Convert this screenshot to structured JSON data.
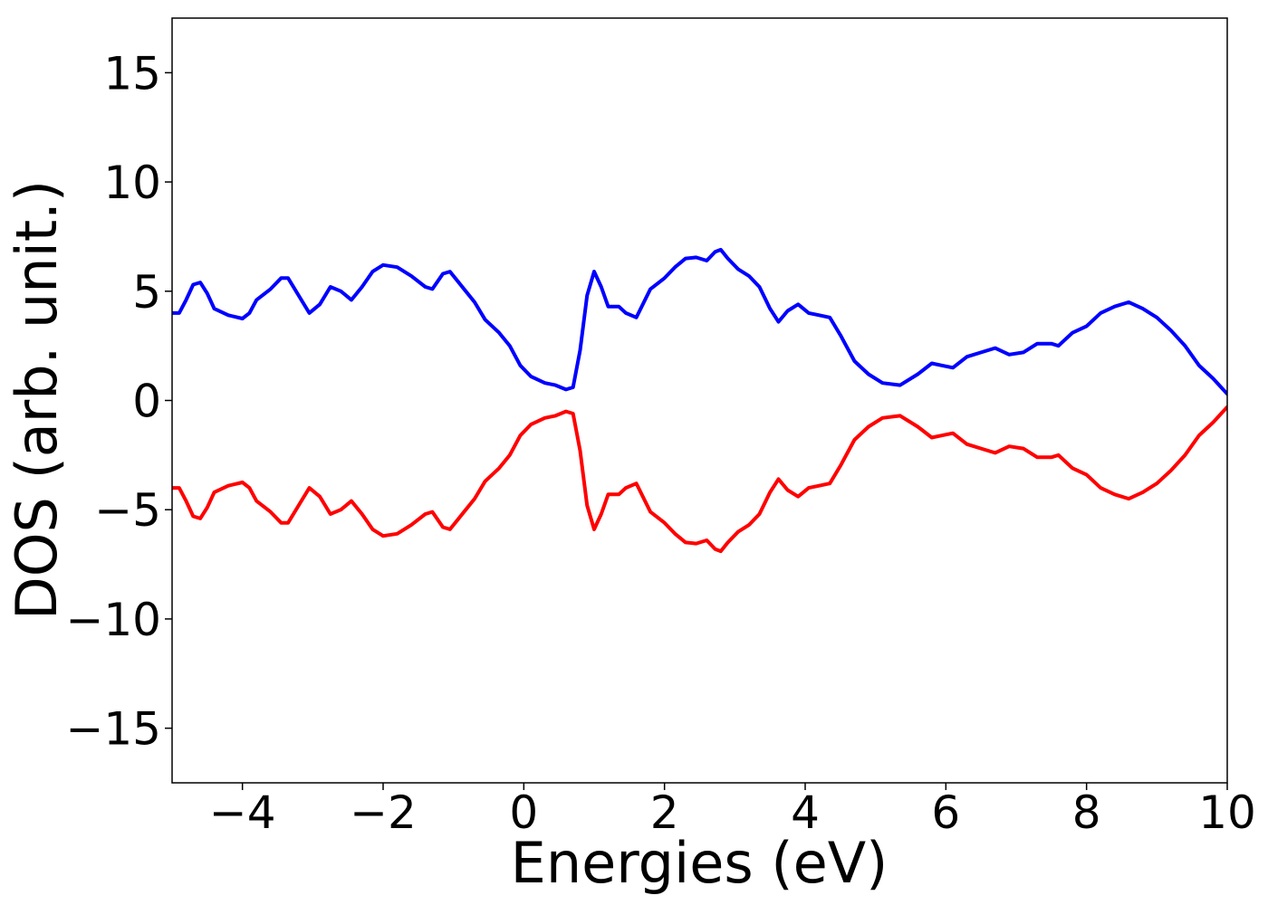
{
  "chart_data": {
    "type": "line",
    "title": "",
    "xlabel": "Energies (eV)",
    "ylabel": "DOS (arb. unit.)",
    "xlim": [
      -5,
      10
    ],
    "ylim": [
      -17.5,
      17.5
    ],
    "xticks": [
      -4,
      -2,
      0,
      2,
      4,
      6,
      8,
      10
    ],
    "xtick_labels": [
      "−4",
      "−2",
      "0",
      "2",
      "4",
      "6",
      "8",
      "10"
    ],
    "yticks": [
      -15,
      -10,
      -5,
      0,
      5,
      10,
      15
    ],
    "ytick_labels": [
      "−15",
      "−10",
      "−5",
      "0",
      "5",
      "10",
      "15"
    ],
    "grid": false,
    "legend": "none",
    "series": [
      {
        "color": "#0000ff",
        "points": [
          [
            -5.0,
            4.0
          ],
          [
            -4.9,
            4.0
          ],
          [
            -4.8,
            4.6
          ],
          [
            -4.7,
            5.3
          ],
          [
            -4.6,
            5.4
          ],
          [
            -4.5,
            4.9
          ],
          [
            -4.4,
            4.2
          ],
          [
            -4.2,
            3.9
          ],
          [
            -4.0,
            3.75
          ],
          [
            -3.9,
            4.0
          ],
          [
            -3.8,
            4.6
          ],
          [
            -3.6,
            5.1
          ],
          [
            -3.45,
            5.6
          ],
          [
            -3.35,
            5.6
          ],
          [
            -3.2,
            4.8
          ],
          [
            -3.05,
            4.0
          ],
          [
            -2.9,
            4.4
          ],
          [
            -2.75,
            5.2
          ],
          [
            -2.6,
            5.0
          ],
          [
            -2.45,
            4.6
          ],
          [
            -2.3,
            5.2
          ],
          [
            -2.15,
            5.9
          ],
          [
            -2.0,
            6.2
          ],
          [
            -1.8,
            6.1
          ],
          [
            -1.6,
            5.7
          ],
          [
            -1.4,
            5.2
          ],
          [
            -1.3,
            5.1
          ],
          [
            -1.15,
            5.8
          ],
          [
            -1.05,
            5.9
          ],
          [
            -0.9,
            5.3
          ],
          [
            -0.7,
            4.5
          ],
          [
            -0.55,
            3.7
          ],
          [
            -0.35,
            3.1
          ],
          [
            -0.2,
            2.5
          ],
          [
            -0.05,
            1.6
          ],
          [
            0.1,
            1.1
          ],
          [
            0.3,
            0.8
          ],
          [
            0.45,
            0.7
          ],
          [
            0.6,
            0.5
          ],
          [
            0.7,
            0.6
          ],
          [
            0.8,
            2.3
          ],
          [
            0.9,
            4.8
          ],
          [
            1.0,
            5.9
          ],
          [
            1.1,
            5.2
          ],
          [
            1.2,
            4.3
          ],
          [
            1.35,
            4.3
          ],
          [
            1.45,
            4.0
          ],
          [
            1.6,
            3.8
          ],
          [
            1.8,
            5.1
          ],
          [
            2.0,
            5.6
          ],
          [
            2.15,
            6.1
          ],
          [
            2.3,
            6.5
          ],
          [
            2.45,
            6.55
          ],
          [
            2.6,
            6.4
          ],
          [
            2.72,
            6.8
          ],
          [
            2.8,
            6.9
          ],
          [
            2.9,
            6.5
          ],
          [
            3.05,
            6.0
          ],
          [
            3.2,
            5.7
          ],
          [
            3.35,
            5.2
          ],
          [
            3.5,
            4.2
          ],
          [
            3.62,
            3.6
          ],
          [
            3.75,
            4.1
          ],
          [
            3.9,
            4.4
          ],
          [
            4.05,
            4.0
          ],
          [
            4.2,
            3.9
          ],
          [
            4.35,
            3.8
          ],
          [
            4.5,
            3.0
          ],
          [
            4.7,
            1.8
          ],
          [
            4.9,
            1.2
          ],
          [
            5.1,
            0.8
          ],
          [
            5.35,
            0.7
          ],
          [
            5.6,
            1.2
          ],
          [
            5.8,
            1.7
          ],
          [
            5.95,
            1.6
          ],
          [
            6.1,
            1.5
          ],
          [
            6.3,
            2.0
          ],
          [
            6.5,
            2.2
          ],
          [
            6.7,
            2.4
          ],
          [
            6.9,
            2.1
          ],
          [
            7.1,
            2.2
          ],
          [
            7.3,
            2.6
          ],
          [
            7.5,
            2.6
          ],
          [
            7.6,
            2.5
          ],
          [
            7.8,
            3.1
          ],
          [
            8.0,
            3.4
          ],
          [
            8.2,
            4.0
          ],
          [
            8.4,
            4.3
          ],
          [
            8.6,
            4.5
          ],
          [
            8.8,
            4.2
          ],
          [
            9.0,
            3.8
          ],
          [
            9.2,
            3.2
          ],
          [
            9.4,
            2.5
          ],
          [
            9.6,
            1.6
          ],
          [
            9.8,
            1.0
          ],
          [
            10.0,
            0.3
          ]
        ]
      },
      {
        "color": "#ff0000",
        "points": [
          [
            -5.0,
            -4.0
          ],
          [
            -4.9,
            -4.0
          ],
          [
            -4.8,
            -4.6
          ],
          [
            -4.7,
            -5.3
          ],
          [
            -4.6,
            -5.4
          ],
          [
            -4.5,
            -4.9
          ],
          [
            -4.4,
            -4.2
          ],
          [
            -4.2,
            -3.9
          ],
          [
            -4.0,
            -3.75
          ],
          [
            -3.9,
            -4.0
          ],
          [
            -3.8,
            -4.6
          ],
          [
            -3.6,
            -5.1
          ],
          [
            -3.45,
            -5.6
          ],
          [
            -3.35,
            -5.6
          ],
          [
            -3.2,
            -4.8
          ],
          [
            -3.05,
            -4.0
          ],
          [
            -2.9,
            -4.4
          ],
          [
            -2.75,
            -5.2
          ],
          [
            -2.6,
            -5.0
          ],
          [
            -2.45,
            -4.6
          ],
          [
            -2.3,
            -5.2
          ],
          [
            -2.15,
            -5.9
          ],
          [
            -2.0,
            -6.2
          ],
          [
            -1.8,
            -6.1
          ],
          [
            -1.6,
            -5.7
          ],
          [
            -1.4,
            -5.2
          ],
          [
            -1.3,
            -5.1
          ],
          [
            -1.15,
            -5.8
          ],
          [
            -1.05,
            -5.9
          ],
          [
            -0.9,
            -5.3
          ],
          [
            -0.7,
            -4.5
          ],
          [
            -0.55,
            -3.7
          ],
          [
            -0.35,
            -3.1
          ],
          [
            -0.2,
            -2.5
          ],
          [
            -0.05,
            -1.6
          ],
          [
            0.1,
            -1.1
          ],
          [
            0.3,
            -0.8
          ],
          [
            0.45,
            -0.7
          ],
          [
            0.6,
            -0.5
          ],
          [
            0.7,
            -0.6
          ],
          [
            0.8,
            -2.3
          ],
          [
            0.9,
            -4.8
          ],
          [
            1.0,
            -5.9
          ],
          [
            1.1,
            -5.2
          ],
          [
            1.2,
            -4.3
          ],
          [
            1.35,
            -4.3
          ],
          [
            1.45,
            -4.0
          ],
          [
            1.6,
            -3.8
          ],
          [
            1.8,
            -5.1
          ],
          [
            2.0,
            -5.6
          ],
          [
            2.15,
            -6.1
          ],
          [
            2.3,
            -6.5
          ],
          [
            2.45,
            -6.55
          ],
          [
            2.6,
            -6.4
          ],
          [
            2.72,
            -6.8
          ],
          [
            2.8,
            -6.9
          ],
          [
            2.9,
            -6.5
          ],
          [
            3.05,
            -6.0
          ],
          [
            3.2,
            -5.7
          ],
          [
            3.35,
            -5.2
          ],
          [
            3.5,
            -4.2
          ],
          [
            3.62,
            -3.6
          ],
          [
            3.75,
            -4.1
          ],
          [
            3.9,
            -4.4
          ],
          [
            4.05,
            -4.0
          ],
          [
            4.2,
            -3.9
          ],
          [
            4.35,
            -3.8
          ],
          [
            4.5,
            -3.0
          ],
          [
            4.7,
            -1.8
          ],
          [
            4.9,
            -1.2
          ],
          [
            5.1,
            -0.8
          ],
          [
            5.35,
            -0.7
          ],
          [
            5.6,
            -1.2
          ],
          [
            5.8,
            -1.7
          ],
          [
            5.95,
            -1.6
          ],
          [
            6.1,
            -1.5
          ],
          [
            6.3,
            -2.0
          ],
          [
            6.5,
            -2.2
          ],
          [
            6.7,
            -2.4
          ],
          [
            6.9,
            -2.1
          ],
          [
            7.1,
            -2.2
          ],
          [
            7.3,
            -2.6
          ],
          [
            7.5,
            -2.6
          ],
          [
            7.6,
            -2.5
          ],
          [
            7.8,
            -3.1
          ],
          [
            8.0,
            -3.4
          ],
          [
            8.2,
            -4.0
          ],
          [
            8.4,
            -4.3
          ],
          [
            8.6,
            -4.5
          ],
          [
            8.8,
            -4.2
          ],
          [
            9.0,
            -3.8
          ],
          [
            9.2,
            -3.2
          ],
          [
            9.4,
            -2.5
          ],
          [
            9.6,
            -1.6
          ],
          [
            9.8,
            -1.0
          ],
          [
            10.0,
            -0.3
          ]
        ]
      }
    ]
  }
}
